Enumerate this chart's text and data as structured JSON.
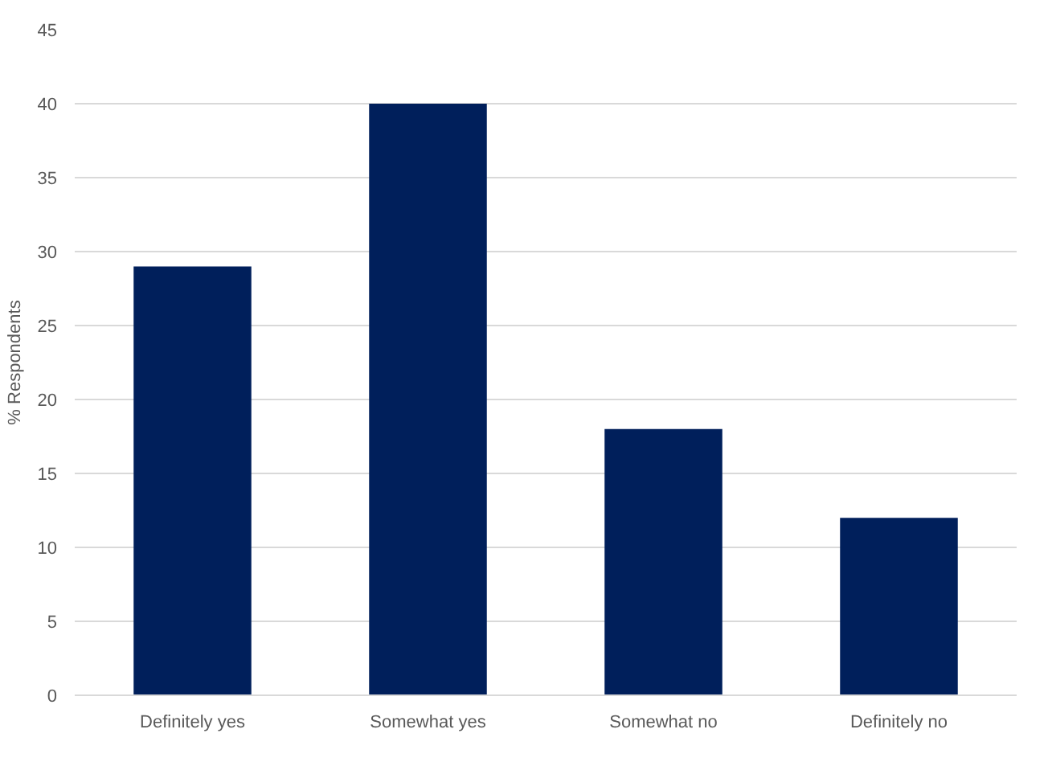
{
  "chart_data": {
    "type": "bar",
    "ylabel": "% Respondents",
    "categories": [
      "Definitely yes",
      "Somewhat yes",
      "Somewhat no",
      "Definitely no"
    ],
    "values": [
      29,
      40,
      18,
      12
    ],
    "color": "#001f5b",
    "ylim": [
      0,
      45
    ],
    "yticks": [
      0,
      5,
      10,
      15,
      20,
      25,
      30,
      35,
      40,
      45
    ],
    "grid": "y"
  }
}
